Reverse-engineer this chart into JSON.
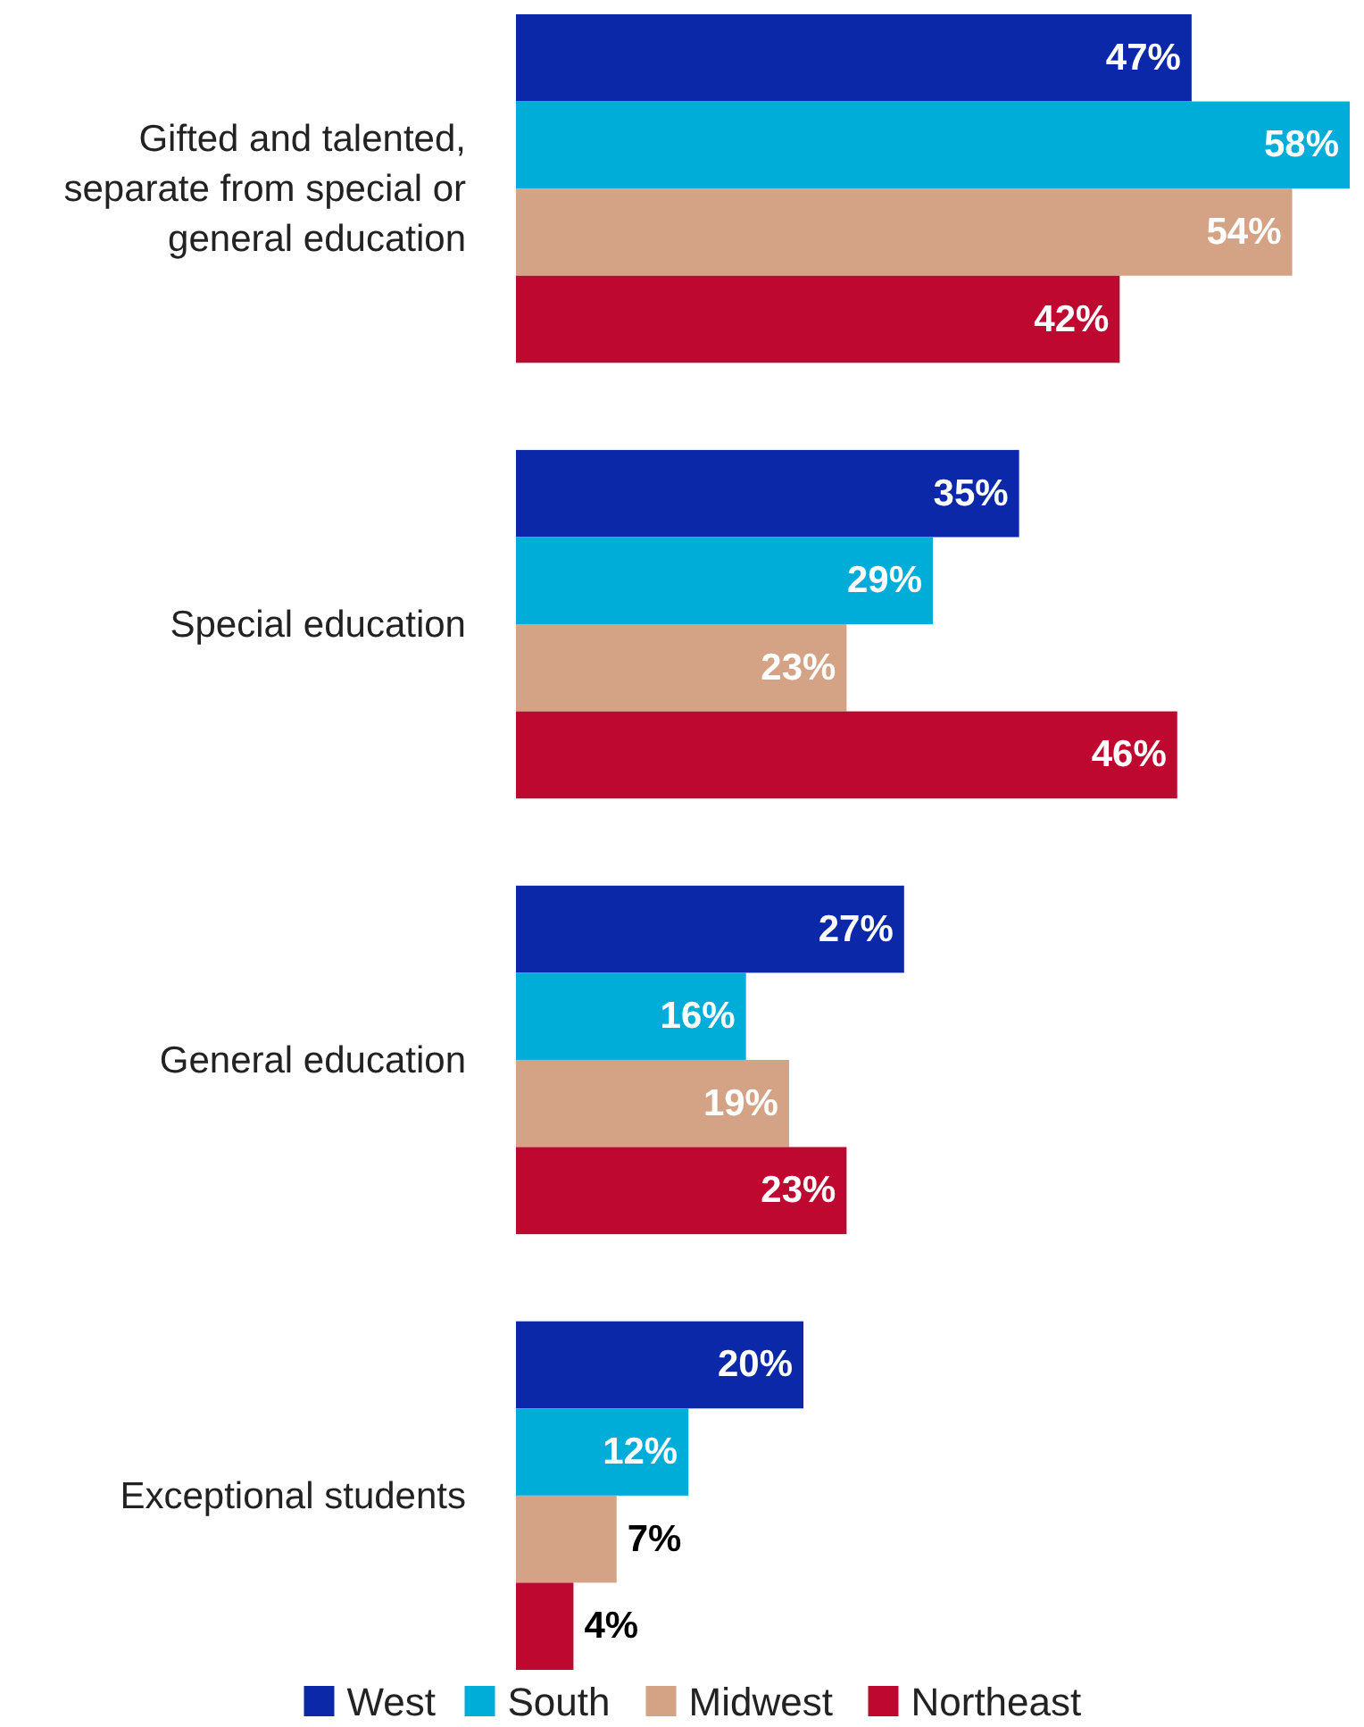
{
  "chart_data": {
    "type": "bar",
    "orientation": "horizontal",
    "categories": [
      "Gifted and talented, separate from special or general education",
      "Special education",
      "General education",
      "Exceptional students"
    ],
    "series": [
      {
        "name": "West",
        "color": "#0a28a8",
        "values": [
          47,
          35,
          27,
          20
        ],
        "value_labels": [
          "47%",
          "35%",
          "27%",
          "20%"
        ]
      },
      {
        "name": "South",
        "color": "#00acd8",
        "values": [
          58,
          29,
          16,
          12
        ],
        "value_labels": [
          "58%",
          "29%",
          "16%",
          "12%"
        ]
      },
      {
        "name": "Midwest",
        "color": "#d4a386",
        "values": [
          54,
          23,
          19,
          7
        ],
        "value_labels": [
          "54%",
          "23%",
          "19%",
          "7%"
        ]
      },
      {
        "name": "Northeast",
        "color": "#bf0830",
        "values": [
          42,
          46,
          23,
          4
        ],
        "value_labels": [
          "42%",
          "46%",
          "23%",
          "4%"
        ]
      }
    ],
    "legend": "bottom"
  }
}
